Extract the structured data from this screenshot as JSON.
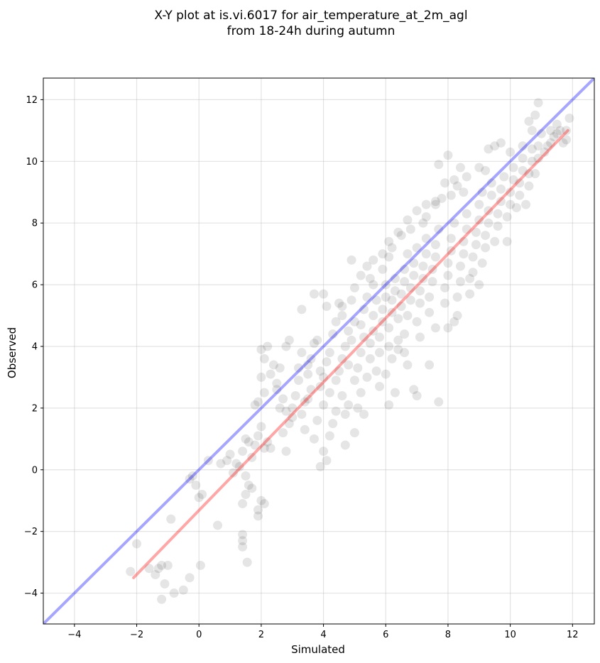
{
  "chart_data": {
    "type": "scatter",
    "title_line1": "X-Y plot at is.vi.6017 for air_temperature_at_2m_agl",
    "title_line2": "from 18-24h during autumn",
    "xlabel": "Simulated",
    "ylabel": "Observed",
    "xlim": [
      -5,
      12.7
    ],
    "ylim": [
      -5,
      12.7
    ],
    "xticks": [
      -4,
      -2,
      0,
      2,
      4,
      6,
      8,
      10,
      12
    ],
    "yticks": [
      -4,
      -2,
      0,
      2,
      4,
      6,
      8,
      10,
      12
    ],
    "xtick_labels": [
      "−4",
      "−2",
      "0",
      "2",
      "4",
      "6",
      "8",
      "10",
      "12"
    ],
    "ytick_labels": [
      "−4",
      "−2",
      "0",
      "2",
      "4",
      "6",
      "8",
      "10",
      "12"
    ],
    "grid": true,
    "colors": {
      "points": "#000000",
      "identity_line": "#0000ff",
      "fit_line": "#ff0000",
      "grid": "#b0b0b0"
    },
    "point_alpha": 0.1,
    "identity_line": {
      "x": [
        -5,
        12.7
      ],
      "y": [
        -5,
        12.7
      ]
    },
    "fit_line": {
      "x": [
        -2.1,
        11.85
      ],
      "y": [
        -3.5,
        11.0
      ]
    },
    "series": [
      {
        "points": [
          [
            -2.2,
            -3.3
          ],
          [
            -2.0,
            -2.4
          ],
          [
            -1.6,
            -3.2
          ],
          [
            -1.4,
            -3.4
          ],
          [
            -1.3,
            -3.2
          ],
          [
            -1.2,
            -3.1
          ],
          [
            -1.0,
            -3.1
          ],
          [
            -1.2,
            -4.2
          ],
          [
            -1.1,
            -3.7
          ],
          [
            -0.8,
            -4.0
          ],
          [
            -0.5,
            -3.9
          ],
          [
            -0.3,
            -3.5
          ],
          [
            0.05,
            -3.1
          ],
          [
            -0.9,
            -1.6
          ],
          [
            0.6,
            -1.8
          ],
          [
            -0.3,
            -0.3
          ],
          [
            -0.2,
            -0.2
          ],
          [
            -0.1,
            -0.5
          ],
          [
            0.0,
            -0.9
          ],
          [
            0.1,
            -0.8
          ],
          [
            0.3,
            0.3
          ],
          [
            0.7,
            0.2
          ],
          [
            0.9,
            0.3
          ],
          [
            1.0,
            0.5
          ],
          [
            1.2,
            0.2
          ],
          [
            1.1,
            -0.1
          ],
          [
            1.3,
            0.1
          ],
          [
            1.5,
            -0.2
          ],
          [
            1.4,
            -1.1
          ],
          [
            1.5,
            -0.8
          ],
          [
            1.6,
            -0.5
          ],
          [
            1.7,
            -0.6
          ],
          [
            1.9,
            -1.3
          ],
          [
            2.0,
            -1.0
          ],
          [
            2.1,
            -1.1
          ],
          [
            1.9,
            -1.5
          ],
          [
            1.4,
            -2.1
          ],
          [
            1.4,
            -2.3
          ],
          [
            1.4,
            -2.5
          ],
          [
            1.55,
            -3.0
          ],
          [
            1.4,
            0.6
          ],
          [
            1.5,
            1.0
          ],
          [
            1.6,
            0.9
          ],
          [
            1.7,
            0.4
          ],
          [
            1.8,
            0.8
          ],
          [
            1.9,
            1.1
          ],
          [
            2.1,
            0.7
          ],
          [
            2.2,
            0.9
          ],
          [
            2.3,
            0.7
          ],
          [
            2.0,
            1.4
          ],
          [
            1.8,
            2.1
          ],
          [
            1.9,
            2.2
          ],
          [
            2.1,
            2.5
          ],
          [
            2.0,
            3.0
          ],
          [
            2.0,
            3.9
          ],
          [
            2.2,
            4.0
          ],
          [
            2.1,
            3.6
          ],
          [
            2.3,
            3.1
          ],
          [
            2.4,
            3.4
          ],
          [
            2.6,
            3.3
          ],
          [
            2.8,
            4.0
          ],
          [
            2.9,
            4.2
          ],
          [
            2.5,
            2.6
          ],
          [
            2.7,
            2.3
          ],
          [
            2.8,
            1.9
          ],
          [
            2.6,
            2.0
          ],
          [
            2.9,
            1.5
          ],
          [
            3.0,
            1.7
          ],
          [
            2.8,
            0.6
          ],
          [
            2.7,
            1.2
          ],
          [
            3.0,
            2.0
          ],
          [
            3.1,
            2.4
          ],
          [
            3.2,
            2.9
          ],
          [
            3.3,
            1.8
          ],
          [
            3.4,
            1.3
          ],
          [
            3.3,
            3.8
          ],
          [
            3.5,
            3.1
          ],
          [
            3.6,
            2.6
          ],
          [
            3.4,
            2.2
          ],
          [
            3.7,
            1.0
          ],
          [
            3.8,
            1.6
          ],
          [
            3.3,
            5.2
          ],
          [
            3.7,
            4.1
          ],
          [
            3.9,
            3.2
          ],
          [
            3.8,
            4.2
          ],
          [
            3.9,
            2.7
          ],
          [
            4.0,
            2.1
          ],
          [
            4.0,
            0.6
          ],
          [
            4.1,
            0.3
          ],
          [
            3.9,
            0.1
          ],
          [
            4.2,
            1.1
          ],
          [
            4.3,
            1.5
          ],
          [
            4.0,
            3.0
          ],
          [
            4.1,
            3.5
          ],
          [
            4.2,
            3.8
          ],
          [
            4.3,
            4.4
          ],
          [
            4.0,
            5.7
          ],
          [
            4.1,
            5.3
          ],
          [
            3.7,
            5.7
          ],
          [
            4.5,
            5.4
          ],
          [
            4.4,
            2.9
          ],
          [
            4.5,
            3.2
          ],
          [
            4.6,
            2.4
          ],
          [
            4.7,
            1.8
          ],
          [
            4.6,
            3.6
          ],
          [
            4.7,
            4.0
          ],
          [
            4.8,
            4.5
          ],
          [
            4.9,
            4.2
          ],
          [
            4.6,
            5.0
          ],
          [
            4.9,
            5.5
          ],
          [
            5.0,
            4.8
          ],
          [
            4.9,
            6.8
          ],
          [
            4.7,
            0.8
          ],
          [
            5.0,
            1.2
          ],
          [
            4.8,
            2.1
          ],
          [
            5.0,
            2.9
          ],
          [
            5.1,
            3.3
          ],
          [
            5.2,
            3.8
          ],
          [
            5.3,
            4.3
          ],
          [
            5.2,
            4.7
          ],
          [
            5.3,
            5.2
          ],
          [
            5.4,
            5.6
          ],
          [
            5.2,
            2.5
          ],
          [
            5.4,
            3.0
          ],
          [
            5.5,
            3.6
          ],
          [
            5.5,
            4.1
          ],
          [
            5.6,
            4.5
          ],
          [
            5.6,
            5.0
          ],
          [
            5.7,
            5.5
          ],
          [
            5.5,
            6.2
          ],
          [
            5.6,
            6.0
          ],
          [
            5.8,
            3.8
          ],
          [
            5.8,
            4.3
          ],
          [
            5.9,
            4.8
          ],
          [
            5.9,
            5.2
          ],
          [
            6.0,
            5.6
          ],
          [
            6.0,
            6.0
          ],
          [
            5.9,
            6.5
          ],
          [
            6.0,
            3.1
          ],
          [
            6.1,
            4.0
          ],
          [
            6.1,
            4.6
          ],
          [
            6.2,
            5.1
          ],
          [
            6.2,
            5.5
          ],
          [
            6.3,
            5.8
          ],
          [
            6.3,
            6.2
          ],
          [
            6.1,
            6.9
          ],
          [
            6.2,
            7.2
          ],
          [
            6.4,
            4.2
          ],
          [
            6.4,
            4.9
          ],
          [
            6.5,
            5.3
          ],
          [
            6.5,
            5.7
          ],
          [
            6.6,
            6.1
          ],
          [
            6.6,
            6.5
          ],
          [
            6.7,
            7.0
          ],
          [
            6.5,
            7.6
          ],
          [
            6.6,
            4.4
          ],
          [
            6.7,
            5.0
          ],
          [
            6.8,
            5.5
          ],
          [
            6.8,
            5.9
          ],
          [
            6.9,
            6.3
          ],
          [
            6.9,
            6.7
          ],
          [
            7.0,
            7.2
          ],
          [
            6.8,
            7.8
          ],
          [
            7.0,
            4.8
          ],
          [
            7.1,
            5.4
          ],
          [
            7.1,
            5.8
          ],
          [
            7.2,
            6.2
          ],
          [
            7.2,
            6.6
          ],
          [
            7.3,
            7.0
          ],
          [
            7.3,
            7.5
          ],
          [
            7.2,
            8.0
          ],
          [
            7.4,
            5.1
          ],
          [
            7.4,
            5.6
          ],
          [
            7.5,
            6.1
          ],
          [
            7.5,
            6.5
          ],
          [
            7.6,
            6.9
          ],
          [
            7.6,
            7.3
          ],
          [
            7.7,
            7.8
          ],
          [
            7.6,
            8.7
          ],
          [
            6.3,
            2.5
          ],
          [
            6.7,
            3.4
          ],
          [
            6.9,
            2.6
          ],
          [
            7.0,
            2.4
          ],
          [
            7.4,
            3.4
          ],
          [
            7.7,
            2.2
          ],
          [
            6.1,
            2.1
          ],
          [
            7.3,
            8.2
          ],
          [
            7.8,
            8.8
          ],
          [
            7.9,
            5.4
          ],
          [
            7.9,
            5.9
          ],
          [
            8.0,
            6.3
          ],
          [
            8.0,
            6.7
          ],
          [
            8.1,
            7.1
          ],
          [
            8.1,
            7.5
          ],
          [
            8.2,
            8.0
          ],
          [
            8.0,
            4.6
          ],
          [
            8.2,
            4.8
          ],
          [
            8.3,
            5.6
          ],
          [
            8.4,
            6.1
          ],
          [
            8.4,
            6.6
          ],
          [
            8.5,
            7.0
          ],
          [
            8.5,
            7.4
          ],
          [
            8.6,
            7.8
          ],
          [
            8.6,
            8.3
          ],
          [
            8.5,
            9.0
          ],
          [
            8.7,
            5.7
          ],
          [
            8.8,
            6.4
          ],
          [
            8.8,
            6.9
          ],
          [
            8.9,
            7.3
          ],
          [
            8.9,
            7.7
          ],
          [
            9.0,
            8.1
          ],
          [
            9.0,
            8.6
          ],
          [
            9.1,
            9.0
          ],
          [
            9.0,
            6.0
          ],
          [
            9.1,
            6.7
          ],
          [
            9.2,
            7.2
          ],
          [
            9.2,
            7.6
          ],
          [
            9.3,
            8.0
          ],
          [
            9.3,
            8.4
          ],
          [
            9.4,
            8.9
          ],
          [
            9.4,
            9.3
          ],
          [
            9.5,
            7.4
          ],
          [
            9.6,
            7.9
          ],
          [
            9.6,
            8.3
          ],
          [
            9.7,
            8.7
          ],
          [
            9.7,
            9.1
          ],
          [
            9.8,
            9.5
          ],
          [
            9.9,
            7.4
          ],
          [
            9.9,
            8.2
          ],
          [
            10.0,
            8.6
          ],
          [
            10.0,
            9.0
          ],
          [
            10.1,
            9.4
          ],
          [
            10.1,
            9.8
          ],
          [
            10.2,
            8.5
          ],
          [
            10.3,
            8.9
          ],
          [
            10.3,
            9.3
          ],
          [
            10.4,
            9.7
          ],
          [
            10.4,
            10.1
          ],
          [
            10.5,
            8.6
          ],
          [
            10.6,
            9.2
          ],
          [
            10.6,
            9.6
          ],
          [
            10.7,
            10.0
          ],
          [
            10.7,
            10.4
          ],
          [
            8.0,
            10.2
          ],
          [
            7.7,
            9.9
          ],
          [
            7.9,
            9.3
          ],
          [
            8.2,
            9.4
          ],
          [
            8.4,
            9.8
          ],
          [
            8.1,
            8.9
          ],
          [
            7.6,
            8.6
          ],
          [
            8.6,
            9.5
          ],
          [
            8.3,
            9.2
          ],
          [
            9.3,
            10.4
          ],
          [
            9.5,
            10.5
          ],
          [
            9.7,
            10.6
          ],
          [
            10.0,
            10.3
          ],
          [
            9.0,
            9.8
          ],
          [
            9.2,
            9.7
          ],
          [
            10.8,
            9.6
          ],
          [
            10.9,
            10.1
          ],
          [
            10.9,
            10.5
          ],
          [
            11.0,
            10.9
          ],
          [
            11.1,
            10.3
          ],
          [
            11.2,
            10.5
          ],
          [
            11.3,
            10.6
          ],
          [
            11.4,
            10.8
          ],
          [
            11.5,
            10.9
          ],
          [
            11.6,
            11.0
          ],
          [
            11.7,
            10.6
          ],
          [
            11.8,
            10.7
          ],
          [
            11.8,
            11.0
          ],
          [
            10.7,
            11.0
          ],
          [
            10.8,
            11.5
          ],
          [
            10.9,
            11.9
          ],
          [
            10.6,
            11.3
          ],
          [
            11.9,
            11.4
          ],
          [
            10.4,
            10.5
          ],
          [
            11.5,
            11.2
          ],
          [
            11.3,
            11.0
          ],
          [
            3.5,
            2.3
          ],
          [
            3.6,
            3.6
          ],
          [
            4.2,
            2.5
          ],
          [
            4.4,
            1.9
          ],
          [
            4.8,
            3.4
          ],
          [
            5.1,
            2.0
          ],
          [
            5.3,
            1.8
          ],
          [
            5.7,
            3.2
          ],
          [
            5.8,
            2.7
          ],
          [
            6.2,
            3.6
          ],
          [
            6.4,
            3.9
          ],
          [
            6.6,
            3.8
          ],
          [
            7.1,
            4.3
          ],
          [
            7.6,
            4.6
          ],
          [
            8.3,
            5.0
          ],
          [
            8.7,
            6.2
          ],
          [
            5.0,
            5.9
          ],
          [
            5.2,
            6.3
          ],
          [
            5.4,
            6.6
          ],
          [
            5.6,
            6.8
          ],
          [
            5.9,
            7.0
          ],
          [
            6.1,
            7.4
          ],
          [
            6.4,
            7.7
          ],
          [
            6.7,
            8.1
          ],
          [
            7.0,
            8.4
          ],
          [
            7.3,
            8.6
          ],
          [
            4.4,
            4.8
          ],
          [
            4.6,
            5.3
          ],
          [
            3.5,
            3.4
          ],
          [
            3.2,
            3.3
          ],
          [
            2.5,
            2.8
          ]
        ]
      }
    ]
  }
}
